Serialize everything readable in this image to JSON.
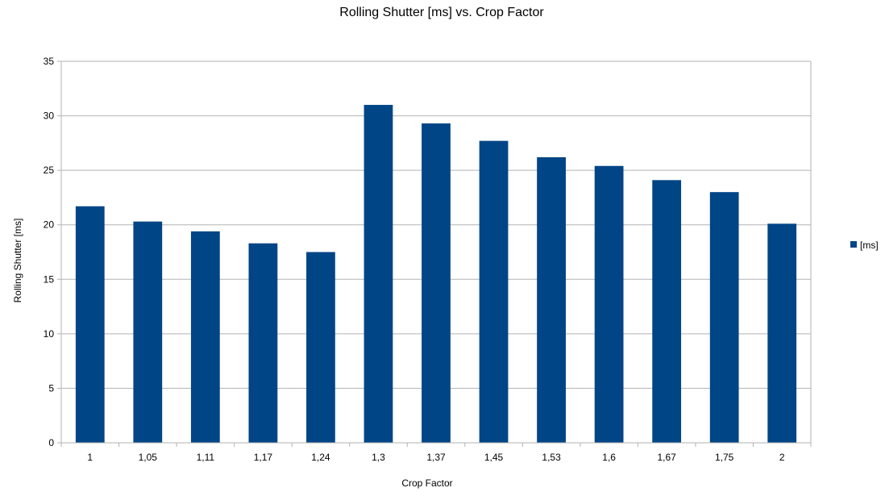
{
  "chart_data": {
    "type": "bar",
    "title": "Rolling Shutter [ms] vs. Crop Factor",
    "xlabel": "Crop Factor",
    "ylabel": "Rolling Shutter [ms]",
    "categories": [
      "1",
      "1,05",
      "1,11",
      "1,17",
      "1,24",
      "1,3",
      "1,37",
      "1,45",
      "1,53",
      "1,6",
      "1,67",
      "1,75",
      "2"
    ],
    "series": [
      {
        "name": "[ms]",
        "color": "#004586",
        "values": [
          21.7,
          20.3,
          19.4,
          18.3,
          17.5,
          31.0,
          29.3,
          27.7,
          26.2,
          25.4,
          24.1,
          23.0,
          20.1
        ]
      }
    ],
    "ylim": [
      0,
      35
    ],
    "yticks": [
      0,
      5,
      10,
      15,
      20,
      25,
      30,
      35
    ],
    "grid": true,
    "legend_position": "right"
  }
}
